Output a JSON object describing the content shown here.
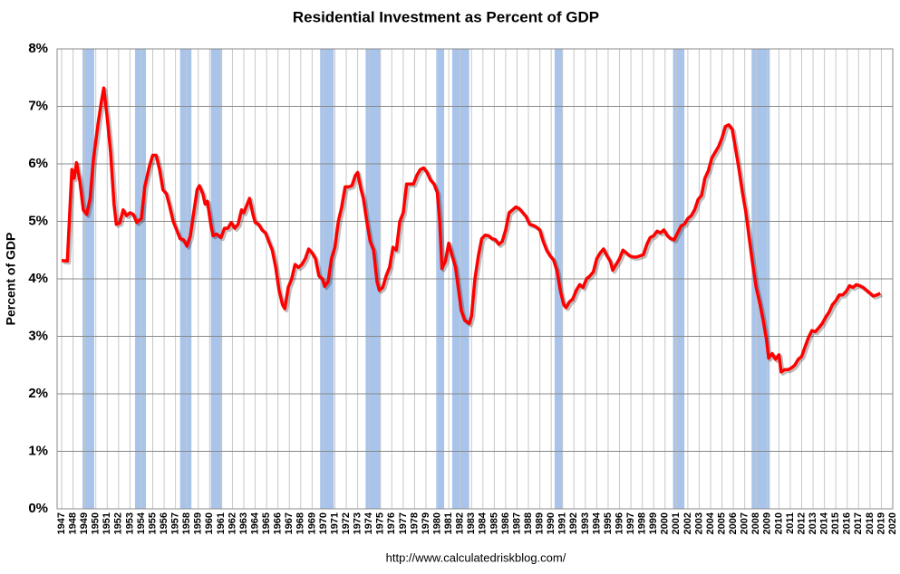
{
  "chart_data": {
    "type": "line",
    "title": "Residential Investment as Percent of GDP",
    "y_label": "Percent of GDP",
    "source": "http://www.calculatedriskblog.com/",
    "xlim": [
      1946.6,
      2020
    ],
    "ylim": [
      0,
      8
    ],
    "yticks": [
      {
        "value": 0,
        "label": "0%"
      },
      {
        "value": 1,
        "label": "1%"
      },
      {
        "value": 2,
        "label": "2%"
      },
      {
        "value": 3,
        "label": "3%"
      },
      {
        "value": 4,
        "label": "4%"
      },
      {
        "value": 5,
        "label": "5%"
      },
      {
        "value": 6,
        "label": "6%"
      },
      {
        "value": 7,
        "label": "7%"
      },
      {
        "value": 8,
        "label": "8%"
      }
    ],
    "xticks": [
      1947,
      1948,
      1949,
      1950,
      1951,
      1952,
      1953,
      1954,
      1955,
      1956,
      1957,
      1958,
      1959,
      1960,
      1961,
      1962,
      1963,
      1964,
      1965,
      1966,
      1967,
      1968,
      1969,
      1970,
      1971,
      1972,
      1973,
      1974,
      1975,
      1976,
      1977,
      1978,
      1979,
      1980,
      1981,
      1982,
      1983,
      1984,
      1985,
      1986,
      1987,
      1988,
      1989,
      1990,
      1991,
      1992,
      1993,
      1994,
      1995,
      1996,
      1997,
      1998,
      1999,
      2000,
      2001,
      2002,
      2003,
      2004,
      2005,
      2006,
      2007,
      2008,
      2009,
      2010,
      2011,
      2012,
      2013,
      2014,
      2015,
      2016,
      2017,
      2018,
      2019,
      2020
    ],
    "grid": true,
    "recession_color": "#a9c4eb",
    "recessions": [
      [
        1948.83,
        1949.86
      ],
      [
        1953.45,
        1954.4
      ],
      [
        1957.4,
        1958.4
      ],
      [
        1960.1,
        1961.1
      ],
      [
        1969.7,
        1970.9
      ],
      [
        1973.7,
        1975.0
      ],
      [
        1979.9,
        1980.6
      ],
      [
        1981.3,
        1982.8
      ],
      [
        1990.3,
        1991.0
      ],
      [
        2000.7,
        2001.7
      ],
      [
        2007.6,
        2009.2
      ]
    ],
    "series": [
      {
        "name": "Residential Investment",
        "color": "#ff0000",
        "x": [
          1947.0,
          1947.5,
          1947.9,
          1948.1,
          1948.3,
          1948.6,
          1948.9,
          1949.2,
          1949.5,
          1949.8,
          1950.2,
          1950.5,
          1950.7,
          1951.0,
          1951.3,
          1951.6,
          1951.8,
          1952.1,
          1952.4,
          1952.7,
          1953.0,
          1953.3,
          1953.6,
          1954.0,
          1954.3,
          1954.7,
          1955.0,
          1955.3,
          1955.6,
          1955.9,
          1956.2,
          1956.5,
          1956.8,
          1957.1,
          1957.4,
          1957.7,
          1958.0,
          1958.3,
          1958.6,
          1958.9,
          1959.1,
          1959.4,
          1959.6,
          1959.8,
          1960.1,
          1960.3,
          1960.6,
          1961.0,
          1961.3,
          1961.6,
          1961.9,
          1962.2,
          1962.5,
          1962.8,
          1963.0,
          1963.3,
          1963.5,
          1963.8,
          1964.0,
          1964.3,
          1964.6,
          1964.9,
          1965.2,
          1965.5,
          1965.8,
          1966.1,
          1966.4,
          1966.6,
          1966.9,
          1967.2,
          1967.5,
          1967.8,
          1968.1,
          1968.4,
          1968.7,
          1969.0,
          1969.3,
          1969.6,
          1969.9,
          1970.1,
          1970.4,
          1970.7,
          1971.0,
          1971.3,
          1971.6,
          1971.9,
          1972.2,
          1972.5,
          1972.8,
          1973.0,
          1973.3,
          1973.5,
          1973.8,
          1974.1,
          1974.4,
          1974.7,
          1974.9,
          1975.2,
          1975.5,
          1975.8,
          1976.1,
          1976.4,
          1976.7,
          1977.0,
          1977.3,
          1977.6,
          1977.9,
          1978.2,
          1978.5,
          1978.8,
          1979.1,
          1979.4,
          1979.7,
          1980.0,
          1980.2,
          1980.4,
          1980.7,
          1981.0,
          1981.3,
          1981.6,
          1981.9,
          1982.1,
          1982.4,
          1982.8,
          1983.0,
          1983.3,
          1983.6,
          1983.9,
          1984.2,
          1984.5,
          1984.8,
          1985.1,
          1985.4,
          1985.7,
          1986.0,
          1986.3,
          1986.6,
          1986.9,
          1987.2,
          1987.5,
          1987.8,
          1988.1,
          1988.4,
          1988.7,
          1989.0,
          1989.3,
          1989.6,
          1989.9,
          1990.2,
          1990.5,
          1990.8,
          1991.1,
          1991.3,
          1991.6,
          1991.9,
          1992.2,
          1992.5,
          1992.8,
          1993.1,
          1993.4,
          1993.7,
          1994.0,
          1994.3,
          1994.6,
          1994.9,
          1995.2,
          1995.4,
          1995.7,
          1996.0,
          1996.3,
          1996.6,
          1996.9,
          1997.2,
          1997.5,
          1997.8,
          1998.1,
          1998.4,
          1998.7,
          1999.0,
          1999.3,
          1999.6,
          1999.9,
          2000.2,
          2000.5,
          2000.8,
          2001.1,
          2001.4,
          2001.7,
          2002.0,
          2002.3,
          2002.6,
          2002.9,
          2003.2,
          2003.5,
          2003.8,
          2004.1,
          2004.4,
          2004.7,
          2005.0,
          2005.3,
          2005.6,
          2005.9,
          2006.2,
          2006.5,
          2006.8,
          2007.1,
          2007.4,
          2007.7,
          2008.0,
          2008.3,
          2008.6,
          2008.9,
          2009.1,
          2009.4,
          2009.7,
          2010.0,
          2010.2,
          2010.5,
          2010.8,
          2011.1,
          2011.4,
          2011.7,
          2012.0,
          2012.3,
          2012.6,
          2012.9,
          2013.2,
          2013.5,
          2013.8,
          2014.1,
          2014.4,
          2014.7,
          2015.0,
          2015.3,
          2015.6,
          2015.9,
          2016.2,
          2016.5,
          2016.8,
          2017.1,
          2017.4,
          2017.7,
          2018.0,
          2018.3,
          2018.6,
          2018.9
        ],
        "values": [
          4.32,
          4.31,
          5.9,
          5.75,
          6.02,
          5.7,
          5.2,
          5.12,
          5.4,
          6.1,
          6.7,
          7.1,
          7.32,
          6.8,
          6.2,
          5.3,
          4.95,
          4.97,
          5.2,
          5.1,
          5.15,
          5.12,
          4.98,
          5.05,
          5.6,
          5.95,
          6.15,
          6.15,
          5.9,
          5.55,
          5.48,
          5.25,
          5.0,
          4.85,
          4.7,
          4.68,
          4.57,
          4.75,
          5.15,
          5.55,
          5.62,
          5.48,
          5.3,
          5.35,
          4.95,
          4.75,
          4.78,
          4.72,
          4.88,
          4.88,
          4.98,
          4.88,
          4.95,
          5.2,
          5.15,
          5.3,
          5.4,
          5.12,
          4.98,
          4.95,
          4.85,
          4.8,
          4.65,
          4.5,
          4.2,
          3.8,
          3.55,
          3.48,
          3.85,
          4.0,
          4.25,
          4.2,
          4.25,
          4.35,
          4.52,
          4.45,
          4.35,
          4.05,
          4.0,
          3.87,
          3.95,
          4.35,
          4.55,
          5.0,
          5.25,
          5.6,
          5.6,
          5.62,
          5.8,
          5.85,
          5.55,
          5.4,
          5.0,
          4.65,
          4.5,
          3.95,
          3.8,
          3.85,
          4.05,
          4.2,
          4.55,
          4.5,
          5.0,
          5.15,
          5.65,
          5.65,
          5.65,
          5.8,
          5.9,
          5.93,
          5.85,
          5.72,
          5.65,
          5.5,
          5.0,
          4.18,
          4.3,
          4.62,
          4.4,
          4.2,
          3.75,
          3.45,
          3.28,
          3.22,
          3.35,
          4.0,
          4.4,
          4.7,
          4.76,
          4.75,
          4.7,
          4.68,
          4.6,
          4.65,
          4.85,
          5.15,
          5.2,
          5.25,
          5.22,
          5.15,
          5.08,
          4.95,
          4.93,
          4.9,
          4.85,
          4.65,
          4.5,
          4.4,
          4.33,
          4.15,
          3.8,
          3.55,
          3.5,
          3.6,
          3.65,
          3.8,
          3.9,
          3.85,
          4.0,
          4.05,
          4.12,
          4.35,
          4.45,
          4.52,
          4.4,
          4.3,
          4.15,
          4.25,
          4.35,
          4.5,
          4.45,
          4.4,
          4.38,
          4.38,
          4.4,
          4.42,
          4.6,
          4.72,
          4.75,
          4.83,
          4.8,
          4.85,
          4.75,
          4.7,
          4.68,
          4.8,
          4.92,
          4.95,
          5.05,
          5.1,
          5.2,
          5.38,
          5.45,
          5.75,
          5.88,
          6.1,
          6.2,
          6.3,
          6.45,
          6.65,
          6.68,
          6.6,
          6.25,
          5.9,
          5.5,
          5.15,
          4.7,
          4.25,
          3.85,
          3.6,
          3.3,
          2.95,
          2.62,
          2.7,
          2.6,
          2.68,
          2.38,
          2.42,
          2.42,
          2.45,
          2.5,
          2.6,
          2.65,
          2.82,
          2.98,
          3.1,
          3.08,
          3.15,
          3.22,
          3.33,
          3.42,
          3.55,
          3.62,
          3.72,
          3.72,
          3.78,
          3.88,
          3.85,
          3.9,
          3.88,
          3.85,
          3.8,
          3.75,
          3.7,
          3.72,
          3.75
        ]
      }
    ]
  }
}
